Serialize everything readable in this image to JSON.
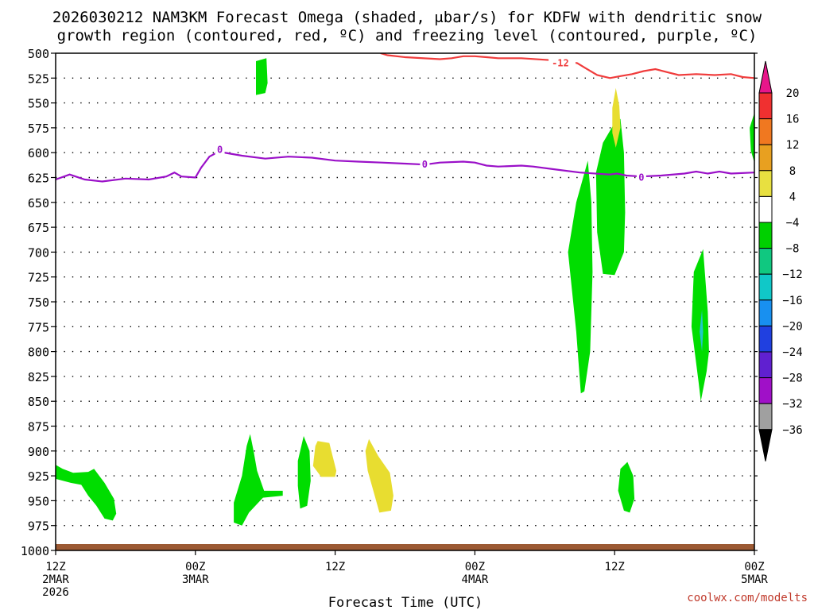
{
  "chart_data": {
    "type": "contour",
    "title_line1": "2026030212 NAM3KM Forecast Omega (shaded, μbar/s) for KDFW with dendritic snow",
    "title_line2": "growth region (contoured, red, ºC) and freezing level (contoured, purple, ºC)",
    "xlabel": "Forecast Time (UTC)",
    "credit": "coolwx.com/modelts",
    "x_range_hours": [
      0,
      60
    ],
    "x_ticks": [
      {
        "h": 0,
        "l1": "12Z",
        "l2": "2MAR",
        "l3": "2026"
      },
      {
        "h": 12,
        "l1": "00Z",
        "l2": "3MAR",
        "l3": ""
      },
      {
        "h": 24,
        "l1": "12Z",
        "l2": "",
        "l3": ""
      },
      {
        "h": 36,
        "l1": "00Z",
        "l2": "4MAR",
        "l3": ""
      },
      {
        "h": 48,
        "l1": "12Z",
        "l2": "",
        "l3": ""
      },
      {
        "h": 60,
        "l1": "00Z",
        "l2": "5MAR",
        "l3": ""
      }
    ],
    "y_ticks_hpa": [
      500,
      525,
      550,
      575,
      600,
      625,
      650,
      675,
      700,
      725,
      750,
      775,
      800,
      825,
      850,
      875,
      900,
      925,
      950,
      975,
      1000
    ],
    "y_range_hpa": [
      500,
      1000
    ],
    "colorbar": {
      "labels": [
        "20",
        "16",
        "12",
        "8",
        "4",
        "−4",
        "−8",
        "−12",
        "−16",
        "−20",
        "−24",
        "−28",
        "−32",
        "−36"
      ],
      "colors": [
        "#e8168a",
        "#f03030",
        "#f07820",
        "#e8a020",
        "#e8e040",
        "#ffffff",
        "#00d000",
        "#10c880",
        "#10c8c8",
        "#1890f0",
        "#2040e0",
        "#6020d0",
        "#a010c8",
        "#a0a0a0",
        "#000000"
      ]
    },
    "colors": {
      "upward_omega": "#00dd00",
      "downward_omega": "#e8dd30",
      "cyan_core": "#20c8c8",
      "dgz_line": "#f03c3c",
      "freezing_line": "#9a10c8",
      "terrain": "#9c5a34"
    },
    "dgz_contour": {
      "label": "-12",
      "label_at": [
        42.6,
        510
      ],
      "points": [
        [
          27.9,
          500
        ],
        [
          28.5,
          502
        ],
        [
          30,
          504
        ],
        [
          33,
          506
        ],
        [
          34,
          505
        ],
        [
          35,
          503
        ],
        [
          36,
          503
        ],
        [
          37,
          504
        ],
        [
          38,
          505
        ],
        [
          40,
          505
        ],
        [
          42.6,
          507
        ],
        [
          43.8,
          508
        ],
        [
          44.8,
          510
        ],
        [
          45.5,
          515
        ],
        [
          46.5,
          522
        ],
        [
          47.6,
          525
        ],
        [
          48.5,
          523
        ],
        [
          49.5,
          521
        ],
        [
          50.5,
          518
        ],
        [
          51.5,
          516
        ],
        [
          52.5,
          519
        ],
        [
          53.5,
          522
        ],
        [
          55,
          521
        ],
        [
          56.6,
          522
        ],
        [
          58,
          521
        ],
        [
          59,
          524
        ],
        [
          60,
          525
        ]
      ]
    },
    "freezing_contour": {
      "label": "0",
      "label_at": [
        [
          14.1,
          597
        ],
        [
          31.7,
          612
        ],
        [
          50.3,
          625
        ]
      ],
      "points": [
        [
          0,
          627
        ],
        [
          1.2,
          622
        ],
        [
          2.5,
          627
        ],
        [
          4,
          629
        ],
        [
          6,
          626
        ],
        [
          8,
          627
        ],
        [
          9.5,
          624
        ],
        [
          10.2,
          620
        ],
        [
          10.8,
          624
        ],
        [
          12,
          625
        ],
        [
          12.5,
          615
        ],
        [
          13.2,
          604
        ],
        [
          14,
          599
        ],
        [
          15,
          601
        ],
        [
          16,
          603
        ],
        [
          18,
          606
        ],
        [
          20,
          604
        ],
        [
          22,
          605
        ],
        [
          24,
          608
        ],
        [
          26,
          609
        ],
        [
          28,
          610
        ],
        [
          30,
          611
        ],
        [
          31.7,
          612
        ],
        [
          33,
          610
        ],
        [
          35,
          609
        ],
        [
          36,
          610
        ],
        [
          37,
          613
        ],
        [
          38,
          614
        ],
        [
          40,
          613
        ],
        [
          41,
          614
        ],
        [
          43,
          617
        ],
        [
          45,
          620
        ],
        [
          47.6,
          622
        ],
        [
          48.2,
          621
        ],
        [
          49,
          623
        ],
        [
          50.3,
          624
        ],
        [
          52,
          623
        ],
        [
          54,
          621
        ],
        [
          55,
          619
        ],
        [
          56,
          621
        ],
        [
          57,
          619
        ],
        [
          58,
          621
        ],
        [
          60,
          620
        ]
      ]
    },
    "shaded_regions": [
      {
        "name": "omega-green-low-left",
        "points": [
          [
            0,
            914
          ],
          [
            0.6,
            918
          ],
          [
            1.5,
            922
          ],
          [
            2.8,
            921
          ],
          [
            3.3,
            918
          ],
          [
            4.2,
            932
          ],
          [
            5.0,
            948
          ],
          [
            5.2,
            963
          ],
          [
            4.9,
            970
          ],
          [
            4.2,
            968
          ],
          [
            3.5,
            955
          ],
          [
            2.8,
            945
          ],
          [
            2.2,
            934
          ],
          [
            1.3,
            932
          ],
          [
            0,
            928
          ]
        ]
      },
      {
        "name": "omega-green-upper",
        "points": [
          [
            17.2,
            508
          ],
          [
            18.1,
            505
          ],
          [
            18.2,
            530
          ],
          [
            18.0,
            540
          ],
          [
            17.2,
            542
          ]
        ]
      },
      {
        "name": "omega-green-low-a",
        "points": [
          [
            16.7,
            883
          ],
          [
            17.0,
            900
          ],
          [
            17.3,
            920
          ],
          [
            17.9,
            940
          ],
          [
            19.5,
            940
          ],
          [
            19.5,
            945
          ],
          [
            17.8,
            947
          ],
          [
            16.6,
            962
          ],
          [
            16.0,
            975
          ],
          [
            15.3,
            972
          ],
          [
            15.3,
            952
          ],
          [
            16.0,
            925
          ],
          [
            16.4,
            895
          ]
        ]
      },
      {
        "name": "omega-green-low-b",
        "points": [
          [
            21.3,
            885
          ],
          [
            21.8,
            900
          ],
          [
            21.9,
            930
          ],
          [
            21.6,
            955
          ],
          [
            21.0,
            958
          ],
          [
            20.8,
            935
          ],
          [
            20.8,
            910
          ]
        ]
      },
      {
        "name": "omega-green-mid-a",
        "points": [
          [
            45.7,
            608
          ],
          [
            46.0,
            650
          ],
          [
            46.1,
            720
          ],
          [
            45.9,
            800
          ],
          [
            45.4,
            840
          ],
          [
            45.1,
            842
          ],
          [
            44.7,
            780
          ],
          [
            44.0,
            700
          ],
          [
            44.7,
            650
          ]
        ]
      },
      {
        "name": "omega-green-mid-b",
        "points": [
          [
            48.5,
            566
          ],
          [
            48.8,
            600
          ],
          [
            48.9,
            660
          ],
          [
            48.8,
            700
          ],
          [
            48.0,
            723
          ],
          [
            47.0,
            722
          ],
          [
            46.5,
            680
          ],
          [
            46.4,
            620
          ],
          [
            47.0,
            590
          ],
          [
            48.0,
            570
          ]
        ]
      },
      {
        "name": "omega-green-low-c",
        "points": [
          [
            49.1,
            911
          ],
          [
            49.6,
            925
          ],
          [
            49.7,
            948
          ],
          [
            49.3,
            962
          ],
          [
            48.8,
            960
          ],
          [
            48.3,
            940
          ],
          [
            48.5,
            918
          ]
        ]
      },
      {
        "name": "omega-green-mid-c",
        "points": [
          [
            55.6,
            697
          ],
          [
            56.0,
            760
          ],
          [
            56.1,
            800
          ],
          [
            55.9,
            820
          ],
          [
            55.4,
            850
          ],
          [
            55.2,
            830
          ],
          [
            54.6,
            775
          ],
          [
            54.8,
            720
          ]
        ]
      },
      {
        "name": "omega-green-right-edge",
        "points": [
          [
            60,
            560
          ],
          [
            59.6,
            575
          ],
          [
            59.7,
            598
          ],
          [
            60,
            610
          ]
        ]
      },
      {
        "name": "omega-yellow-a",
        "points": [
          [
            22.5,
            890
          ],
          [
            23.5,
            892
          ],
          [
            24.1,
            920
          ],
          [
            24.0,
            926
          ],
          [
            22.8,
            926
          ],
          [
            22.1,
            915
          ],
          [
            22.3,
            895
          ]
        ]
      },
      {
        "name": "omega-yellow-b",
        "points": [
          [
            26.9,
            888
          ],
          [
            27.7,
            905
          ],
          [
            28.7,
            922
          ],
          [
            29.0,
            945
          ],
          [
            28.8,
            960
          ],
          [
            27.8,
            962
          ],
          [
            27.4,
            945
          ],
          [
            26.8,
            920
          ],
          [
            26.6,
            900
          ]
        ]
      },
      {
        "name": "omega-yellow-upper",
        "points": [
          [
            48.1,
            535
          ],
          [
            48.4,
            553
          ],
          [
            48.5,
            575
          ],
          [
            48.1,
            595
          ],
          [
            47.8,
            580
          ],
          [
            47.8,
            555
          ]
        ]
      }
    ],
    "core_regions": [
      {
        "name": "omega-cyan-core",
        "points": [
          [
            55.5,
            758
          ],
          [
            55.6,
            780
          ],
          [
            55.5,
            800
          ],
          [
            55.3,
            780
          ]
        ]
      }
    ]
  }
}
